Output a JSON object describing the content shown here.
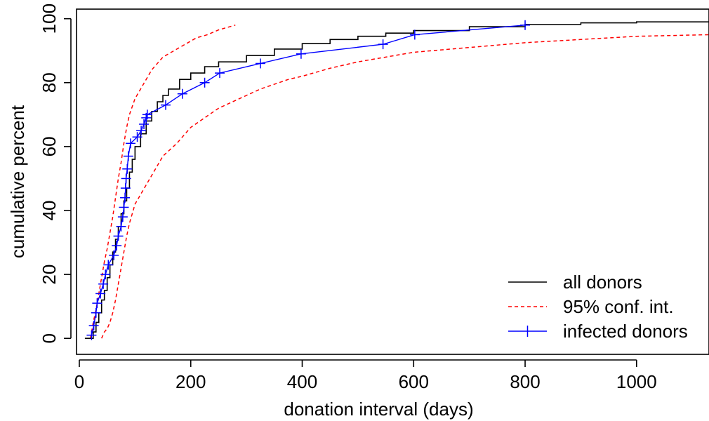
{
  "chart_data": {
    "type": "line",
    "xlabel": "donation interval (days)",
    "ylabel": "cumulative percent",
    "xlim": [
      -5,
      1130
    ],
    "ylim": [
      -5,
      103
    ],
    "x_ticks": [
      0,
      200,
      400,
      600,
      800,
      1000
    ],
    "y_ticks": [
      0,
      20,
      40,
      60,
      80,
      100
    ],
    "grid": false,
    "legend_position": "bottom-right",
    "series": [
      {
        "name": "all donors",
        "style": "step",
        "color": "#000000",
        "points": [
          [
            10,
            0
          ],
          [
            20,
            0
          ],
          [
            25,
            2
          ],
          [
            30,
            5
          ],
          [
            35,
            8
          ],
          [
            40,
            12
          ],
          [
            45,
            15
          ],
          [
            50,
            19
          ],
          [
            55,
            23
          ],
          [
            60,
            27
          ],
          [
            65,
            31
          ],
          [
            70,
            35
          ],
          [
            75,
            39
          ],
          [
            80,
            43
          ],
          [
            85,
            47
          ],
          [
            90,
            52
          ],
          [
            95,
            56
          ],
          [
            100,
            60
          ],
          [
            110,
            64
          ],
          [
            120,
            68
          ],
          [
            130,
            71
          ],
          [
            140,
            74
          ],
          [
            150,
            76
          ],
          [
            160,
            78
          ],
          [
            180,
            81
          ],
          [
            200,
            83
          ],
          [
            225,
            85
          ],
          [
            250,
            86.5
          ],
          [
            300,
            88.5
          ],
          [
            350,
            90.5
          ],
          [
            400,
            92.2
          ],
          [
            450,
            93.5
          ],
          [
            500,
            94.5
          ],
          [
            550,
            95.5
          ],
          [
            600,
            96.3
          ],
          [
            700,
            97.5
          ],
          [
            800,
            98.2
          ],
          [
            900,
            98.7
          ],
          [
            1000,
            99
          ],
          [
            1130,
            99.2
          ]
        ]
      },
      {
        "name": "95% conf. int.",
        "style": "dashed",
        "color": "#ff0000",
        "upper": [
          [
            20,
            0
          ],
          [
            25,
            5
          ],
          [
            30,
            9
          ],
          [
            35,
            14
          ],
          [
            40,
            19
          ],
          [
            45,
            24
          ],
          [
            50,
            28
          ],
          [
            55,
            33
          ],
          [
            60,
            38
          ],
          [
            65,
            44
          ],
          [
            70,
            50
          ],
          [
            75,
            55
          ],
          [
            80,
            61
          ],
          [
            85,
            66
          ],
          [
            90,
            70
          ],
          [
            100,
            75
          ],
          [
            110,
            78
          ],
          [
            120,
            81
          ],
          [
            130,
            84
          ],
          [
            140,
            86
          ],
          [
            150,
            88
          ],
          [
            170,
            90
          ],
          [
            190,
            92
          ],
          [
            210,
            94
          ],
          [
            230,
            95
          ],
          [
            250,
            96.5
          ],
          [
            270,
            97.5
          ],
          [
            280,
            98
          ]
        ],
        "lower": [
          [
            40,
            0
          ],
          [
            45,
            2
          ],
          [
            50,
            3
          ],
          [
            55,
            5
          ],
          [
            60,
            8
          ],
          [
            65,
            12
          ],
          [
            70,
            17
          ],
          [
            75,
            22
          ],
          [
            80,
            27
          ],
          [
            85,
            32
          ],
          [
            90,
            36
          ],
          [
            95,
            39
          ],
          [
            100,
            42
          ],
          [
            110,
            45
          ],
          [
            120,
            48
          ],
          [
            130,
            51
          ],
          [
            140,
            54
          ],
          [
            150,
            57
          ],
          [
            175,
            61
          ],
          [
            200,
            66
          ],
          [
            225,
            69
          ],
          [
            250,
            72
          ],
          [
            275,
            74
          ],
          [
            300,
            76
          ],
          [
            325,
            78
          ],
          [
            350,
            79.5
          ],
          [
            375,
            81
          ],
          [
            400,
            82
          ],
          [
            450,
            84.5
          ],
          [
            500,
            86.5
          ],
          [
            550,
            88
          ],
          [
            600,
            89.5
          ],
          [
            700,
            91
          ],
          [
            800,
            92.5
          ],
          [
            900,
            93.5
          ],
          [
            1000,
            94.5
          ],
          [
            1130,
            95
          ]
        ]
      },
      {
        "name": "infected donors",
        "style": "line-with-plus-markers",
        "color": "#0000ff",
        "points": [
          [
            22,
            1
          ],
          [
            26,
            4
          ],
          [
            30,
            8
          ],
          [
            32,
            11
          ],
          [
            38,
            14
          ],
          [
            43,
            17
          ],
          [
            47,
            20
          ],
          [
            52,
            23
          ],
          [
            62,
            26
          ],
          [
            67,
            29
          ],
          [
            70,
            32
          ],
          [
            75,
            35
          ],
          [
            78,
            38
          ],
          [
            80,
            41
          ],
          [
            82,
            44
          ],
          [
            83,
            47
          ],
          [
            84,
            50
          ],
          [
            86,
            53
          ],
          [
            88,
            57
          ],
          [
            92,
            61
          ],
          [
            104,
            63
          ],
          [
            111,
            65
          ],
          [
            116,
            67
          ],
          [
            120,
            69
          ],
          [
            122,
            70
          ],
          [
            155,
            73
          ],
          [
            185,
            76.5
          ],
          [
            225,
            80
          ],
          [
            252,
            83
          ],
          [
            325,
            86
          ],
          [
            398,
            89
          ],
          [
            545,
            92
          ],
          [
            602,
            95
          ],
          [
            800,
            98
          ]
        ]
      }
    ]
  }
}
